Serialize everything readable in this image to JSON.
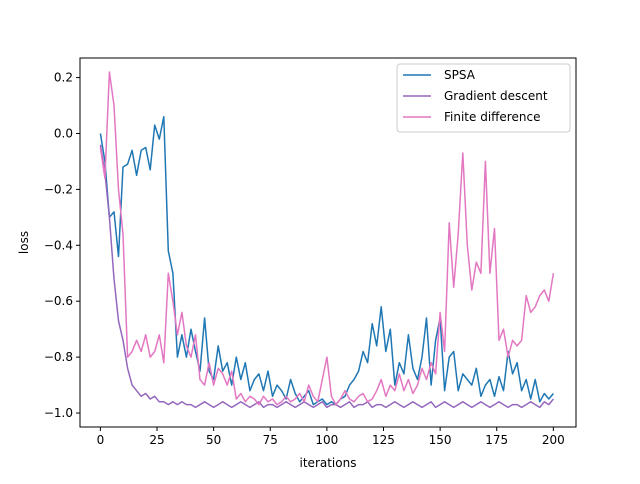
{
  "chart_data": {
    "type": "line",
    "title": "",
    "xlabel": "iterations",
    "ylabel": "loss",
    "xlim": [
      -9,
      210
    ],
    "ylim": [
      -1.05,
      0.27
    ],
    "x_ticks": [
      0,
      25,
      50,
      75,
      100,
      125,
      150,
      175,
      200
    ],
    "x_tick_labels": [
      "0",
      "25",
      "50",
      "75",
      "100",
      "125",
      "150",
      "175",
      "200"
    ],
    "y_ticks": [
      0.2,
      0.0,
      -0.2,
      -0.4,
      -0.6,
      -0.8,
      -1.0
    ],
    "y_tick_labels": [
      "0.2",
      "0.0",
      "−0.2",
      "−0.4",
      "−0.6",
      "−0.8",
      "−1.0"
    ],
    "grid": false,
    "legend_position": "top-right",
    "series": [
      {
        "name": "SPSA",
        "color": "#1f77b4",
        "x": [
          0,
          2,
          4,
          6,
          8,
          10,
          12,
          14,
          16,
          18,
          20,
          22,
          24,
          26,
          28,
          30,
          32,
          34,
          36,
          38,
          40,
          42,
          44,
          46,
          48,
          50,
          52,
          54,
          56,
          58,
          60,
          62,
          64,
          66,
          68,
          70,
          72,
          74,
          76,
          78,
          80,
          82,
          84,
          86,
          88,
          90,
          92,
          94,
          96,
          98,
          100,
          102,
          104,
          106,
          108,
          110,
          112,
          114,
          116,
          118,
          120,
          122,
          124,
          126,
          128,
          130,
          132,
          134,
          136,
          138,
          140,
          142,
          144,
          146,
          148,
          150,
          152,
          154,
          156,
          158,
          160,
          162,
          164,
          166,
          168,
          170,
          172,
          174,
          176,
          178,
          180,
          182,
          184,
          186,
          188,
          190,
          192,
          194,
          196,
          198,
          200
        ],
        "y": [
          0.0,
          -0.1,
          -0.3,
          -0.28,
          -0.44,
          -0.12,
          -0.11,
          -0.06,
          -0.15,
          -0.06,
          -0.05,
          -0.13,
          0.03,
          -0.02,
          0.06,
          -0.42,
          -0.5,
          -0.8,
          -0.72,
          -0.8,
          -0.7,
          -0.78,
          -0.85,
          -0.66,
          -0.85,
          -0.88,
          -0.76,
          -0.85,
          -0.82,
          -0.9,
          -0.8,
          -0.88,
          -0.82,
          -0.92,
          -0.88,
          -0.86,
          -0.92,
          -0.85,
          -0.94,
          -0.9,
          -0.92,
          -0.95,
          -0.88,
          -0.93,
          -0.96,
          -0.94,
          -0.92,
          -0.97,
          -0.96,
          -0.95,
          -0.97,
          -0.96,
          -0.97,
          -0.95,
          -0.94,
          -0.9,
          -0.88,
          -0.85,
          -0.78,
          -0.82,
          -0.68,
          -0.76,
          -0.62,
          -0.78,
          -0.7,
          -0.9,
          -0.82,
          -0.86,
          -0.72,
          -0.84,
          -0.88,
          -0.8,
          -0.66,
          -0.9,
          -0.74,
          -0.66,
          -0.92,
          -0.8,
          -0.78,
          -0.92,
          -0.86,
          -0.88,
          -0.9,
          -0.84,
          -0.94,
          -0.9,
          -0.88,
          -0.94,
          -0.87,
          -0.92,
          -0.78,
          -0.86,
          -0.82,
          -0.92,
          -0.88,
          -0.95,
          -0.88,
          -0.96,
          -0.93,
          -0.95,
          -0.93
        ]
      },
      {
        "name": "Gradient descent",
        "color": "#9467bd",
        "x": [
          0,
          2,
          4,
          6,
          8,
          10,
          12,
          14,
          16,
          18,
          20,
          22,
          24,
          26,
          28,
          30,
          32,
          34,
          36,
          38,
          40,
          42,
          44,
          46,
          48,
          50,
          52,
          54,
          56,
          58,
          60,
          62,
          64,
          66,
          68,
          70,
          72,
          74,
          76,
          78,
          80,
          82,
          84,
          86,
          88,
          90,
          92,
          94,
          96,
          98,
          100,
          102,
          104,
          106,
          108,
          110,
          112,
          114,
          116,
          118,
          120,
          122,
          124,
          126,
          128,
          130,
          132,
          134,
          136,
          138,
          140,
          142,
          144,
          146,
          148,
          150,
          152,
          154,
          156,
          158,
          160,
          162,
          164,
          166,
          168,
          170,
          172,
          174,
          176,
          178,
          180,
          182,
          184,
          186,
          188,
          190,
          192,
          194,
          196,
          198,
          200
        ],
        "y": [
          -0.04,
          -0.14,
          -0.3,
          -0.52,
          -0.67,
          -0.74,
          -0.84,
          -0.9,
          -0.92,
          -0.94,
          -0.93,
          -0.95,
          -0.94,
          -0.96,
          -0.96,
          -0.97,
          -0.96,
          -0.97,
          -0.96,
          -0.97,
          -0.97,
          -0.98,
          -0.97,
          -0.96,
          -0.97,
          -0.98,
          -0.97,
          -0.96,
          -0.97,
          -0.98,
          -0.97,
          -0.96,
          -0.97,
          -0.98,
          -0.97,
          -0.96,
          -0.98,
          -0.97,
          -0.97,
          -0.98,
          -0.97,
          -0.96,
          -0.97,
          -0.98,
          -0.97,
          -0.96,
          -0.97,
          -0.98,
          -0.97,
          -0.96,
          -0.98,
          -0.97,
          -0.97,
          -0.98,
          -0.97,
          -0.96,
          -0.98,
          -0.97,
          -0.97,
          -0.96,
          -0.98,
          -0.97,
          -0.97,
          -0.98,
          -0.97,
          -0.96,
          -0.97,
          -0.98,
          -0.97,
          -0.96,
          -0.97,
          -0.98,
          -0.97,
          -0.96,
          -0.98,
          -0.97,
          -0.96,
          -0.97,
          -0.98,
          -0.97,
          -0.96,
          -0.97,
          -0.98,
          -0.97,
          -0.96,
          -0.97,
          -0.98,
          -0.97,
          -0.96,
          -0.97,
          -0.98,
          -0.97,
          -0.97,
          -0.98,
          -0.97,
          -0.96,
          -0.97,
          -0.98,
          -0.96,
          -0.97,
          -0.95
        ]
      },
      {
        "name": "Finite difference",
        "color": "#e377c2",
        "x": [
          0,
          2,
          4,
          6,
          8,
          10,
          12,
          14,
          16,
          18,
          20,
          22,
          24,
          26,
          28,
          30,
          32,
          34,
          36,
          38,
          40,
          42,
          44,
          46,
          48,
          50,
          52,
          54,
          56,
          58,
          60,
          62,
          64,
          66,
          68,
          70,
          72,
          74,
          76,
          78,
          80,
          82,
          84,
          86,
          88,
          90,
          92,
          94,
          96,
          98,
          100,
          102,
          104,
          106,
          108,
          110,
          112,
          114,
          116,
          118,
          120,
          122,
          124,
          126,
          128,
          130,
          132,
          134,
          136,
          138,
          140,
          142,
          144,
          146,
          148,
          150,
          152,
          154,
          156,
          158,
          160,
          162,
          164,
          166,
          168,
          170,
          172,
          174,
          176,
          178,
          180,
          182,
          184,
          186,
          188,
          190,
          192,
          194,
          196,
          198,
          200
        ],
        "y": [
          -0.05,
          -0.16,
          0.22,
          0.1,
          -0.2,
          -0.36,
          -0.8,
          -0.78,
          -0.74,
          -0.78,
          -0.72,
          -0.8,
          -0.78,
          -0.72,
          -0.82,
          -0.5,
          -0.6,
          -0.72,
          -0.64,
          -0.76,
          -0.8,
          -0.72,
          -0.88,
          -0.9,
          -0.82,
          -0.9,
          -0.84,
          -0.86,
          -0.9,
          -0.85,
          -0.95,
          -0.93,
          -0.96,
          -0.94,
          -0.95,
          -0.97,
          -0.94,
          -0.96,
          -0.95,
          -0.97,
          -0.96,
          -0.94,
          -0.96,
          -0.95,
          -0.93,
          -0.96,
          -0.9,
          -0.94,
          -0.96,
          -0.88,
          -0.8,
          -0.94,
          -0.97,
          -0.95,
          -0.92,
          -0.95,
          -0.96,
          -0.94,
          -0.93,
          -0.96,
          -0.95,
          -0.92,
          -0.88,
          -0.94,
          -0.9,
          -0.92,
          -0.86,
          -0.92,
          -0.88,
          -0.93,
          -0.9,
          -0.84,
          -0.88,
          -0.82,
          -0.86,
          -0.64,
          -0.78,
          -0.32,
          -0.55,
          -0.36,
          -0.07,
          -0.4,
          -0.56,
          -0.46,
          -0.5,
          -0.1,
          -0.5,
          -0.34,
          -0.74,
          -0.7,
          -0.8,
          -0.74,
          -0.76,
          -0.74,
          -0.58,
          -0.64,
          -0.62,
          -0.58,
          -0.56,
          -0.6,
          -0.5
        ]
      }
    ]
  }
}
